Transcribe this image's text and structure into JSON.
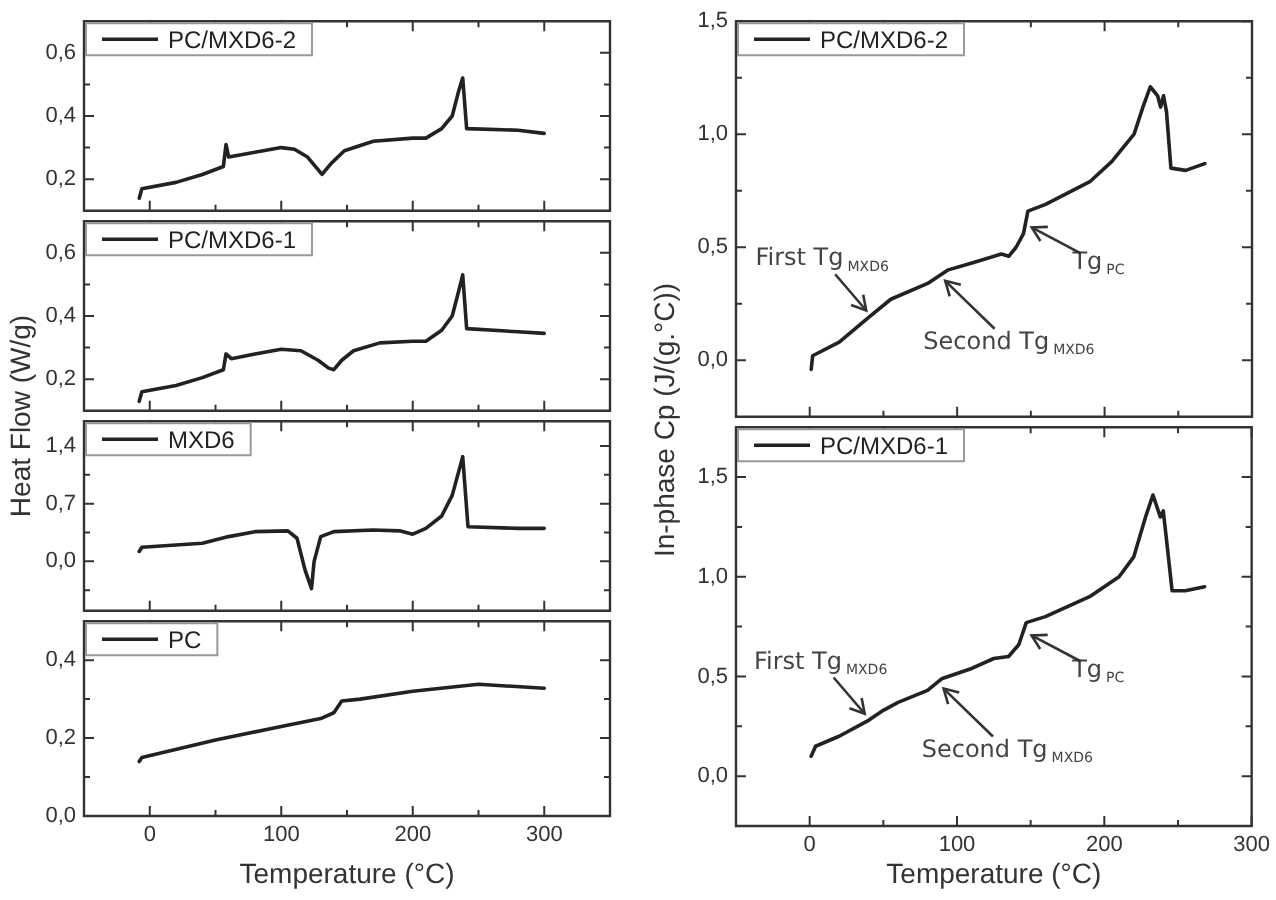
{
  "chart_data": [
    {
      "type": "line",
      "series": [
        {
          "name": "PC/MXD6-2",
          "color": "#222222",
          "x": [
            -8,
            -6,
            20,
            40,
            56,
            58,
            60,
            80,
            100,
            110,
            120,
            128,
            131,
            138,
            148,
            170,
            200,
            210,
            222,
            230,
            235,
            238,
            241,
            280,
            300
          ],
          "values": [
            0.14,
            0.17,
            0.19,
            0.215,
            0.24,
            0.31,
            0.27,
            0.285,
            0.3,
            0.295,
            0.27,
            0.23,
            0.215,
            0.25,
            0.29,
            0.32,
            0.33,
            0.33,
            0.36,
            0.4,
            0.48,
            0.52,
            0.36,
            0.355,
            0.345
          ]
        }
      ],
      "xlim": [
        -50,
        350
      ],
      "xticks": [
        0,
        {
          "value": 50,
          "label": null
        },
        100,
        {
          "value": 150,
          "label": null
        },
        200,
        {
          "value": 250,
          "label": null
        },
        300
      ],
      "ylim": [
        0.1,
        0.7
      ],
      "yticks": [
        {
          "value": 0.2,
          "label": "0,2"
        },
        {
          "value": 0.3,
          "label": null
        },
        {
          "value": 0.4,
          "label": "0,4"
        },
        {
          "value": 0.5,
          "label": null
        },
        {
          "value": 0.6,
          "label": "0,6"
        }
      ],
      "tick_labels": "y",
      "legend": "top left",
      "marker": "none"
    },
    {
      "type": "line",
      "ylabel": "Heat Flow (W/g)",
      "series": [
        {
          "name": "PC/MXD6-1",
          "color": "#222222",
          "x": [
            -8,
            -6,
            20,
            40,
            56,
            58,
            62,
            80,
            100,
            115,
            128,
            136,
            140,
            146,
            155,
            175,
            200,
            210,
            222,
            230,
            235,
            238,
            241,
            280,
            300
          ],
          "values": [
            0.13,
            0.16,
            0.18,
            0.205,
            0.23,
            0.28,
            0.265,
            0.28,
            0.295,
            0.29,
            0.26,
            0.235,
            0.23,
            0.26,
            0.29,
            0.315,
            0.32,
            0.32,
            0.355,
            0.4,
            0.48,
            0.53,
            0.36,
            0.35,
            0.345
          ]
        }
      ],
      "xlim": [
        -50,
        350
      ],
      "xticks": [
        0,
        {
          "value": 50,
          "label": null
        },
        100,
        {
          "value": 150,
          "label": null
        },
        200,
        {
          "value": 250,
          "label": null
        },
        300
      ],
      "ylim": [
        0.1,
        0.7
      ],
      "yticks": [
        {
          "value": 0.2,
          "label": "0,2"
        },
        {
          "value": 0.3,
          "label": null
        },
        {
          "value": 0.4,
          "label": "0,4"
        },
        {
          "value": 0.5,
          "label": null
        },
        {
          "value": 0.6,
          "label": "0,6"
        }
      ],
      "tick_labels": "y",
      "legend": "top left",
      "marker": "none"
    },
    {
      "type": "line",
      "series": [
        {
          "name": "MXD6",
          "color": "#222222",
          "x": [
            -8,
            -6,
            40,
            60,
            80,
            105,
            112,
            118,
            123,
            125,
            130,
            140,
            170,
            190,
            200,
            210,
            222,
            230,
            236,
            238,
            242,
            280,
            300
          ],
          "values": [
            0.12,
            0.17,
            0.22,
            0.3,
            0.36,
            0.37,
            0.28,
            -0.1,
            -0.33,
            0.0,
            0.3,
            0.36,
            0.38,
            0.37,
            0.33,
            0.4,
            0.55,
            0.8,
            1.15,
            1.27,
            0.42,
            0.4,
            0.4
          ]
        }
      ],
      "xlim": [
        -50,
        350
      ],
      "xticks": [
        0,
        {
          "value": 50,
          "label": null
        },
        100,
        {
          "value": 150,
          "label": null
        },
        200,
        {
          "value": 250,
          "label": null
        },
        300
      ],
      "ylim": [
        -0.6,
        1.7
      ],
      "yticks": [
        {
          "value": -0.35,
          "label": null
        },
        {
          "value": 0,
          "label": "0,0"
        },
        {
          "value": 0.35,
          "label": null
        },
        {
          "value": 0.7,
          "label": "0,7"
        },
        {
          "value": 1.05,
          "label": null
        },
        {
          "value": 1.4,
          "label": "1,4"
        }
      ],
      "tick_labels": "y",
      "legend": "top left",
      "marker": "none"
    },
    {
      "type": "line",
      "xlabel": "Temperature (°C)",
      "series": [
        {
          "name": "PC",
          "color": "#222222",
          "x": [
            -8,
            -6,
            50,
            100,
            130,
            140,
            146,
            160,
            200,
            250,
            300
          ],
          "values": [
            0.14,
            0.15,
            0.195,
            0.23,
            0.25,
            0.265,
            0.295,
            0.3,
            0.32,
            0.338,
            0.328
          ]
        }
      ],
      "xlim": [
        -50,
        350
      ],
      "xticks": [
        0,
        {
          "value": 50,
          "label": null
        },
        100,
        {
          "value": 150,
          "label": null
        },
        200,
        {
          "value": 250,
          "label": null
        },
        300
      ],
      "ylim": [
        0,
        0.5
      ],
      "yticks": [
        {
          "value": 0,
          "label": "0,0"
        },
        {
          "value": 0.1,
          "label": null
        },
        {
          "value": 0.2,
          "label": "0,2"
        },
        {
          "value": 0.3,
          "label": null
        },
        {
          "value": 0.4,
          "label": "0,4"
        }
      ],
      "legend": "top left",
      "marker": "none"
    },
    {
      "type": "line",
      "ylabel": "In-phase Cp (J/(g.°C))",
      "series": [
        {
          "name": "PC/MXD6-2",
          "color": "#222222",
          "x": [
            1,
            2,
            20,
            40,
            55,
            80,
            94,
            110,
            130,
            135,
            140,
            145,
            148,
            160,
            190,
            205,
            220,
            226,
            231,
            236,
            238,
            240,
            242,
            245,
            255,
            268
          ],
          "values": [
            -0.04,
            0.02,
            0.08,
            0.19,
            0.27,
            0.34,
            0.4,
            0.43,
            0.47,
            0.46,
            0.5,
            0.56,
            0.66,
            0.69,
            0.79,
            0.88,
            1.0,
            1.12,
            1.21,
            1.17,
            1.12,
            1.17,
            1.1,
            0.85,
            0.84,
            0.87
          ]
        }
      ],
      "xlim": [
        -50,
        300
      ],
      "xticks": [
        0,
        {
          "value": 50,
          "label": null
        },
        100,
        {
          "value": 150,
          "label": null
        },
        200,
        {
          "value": 250,
          "label": null
        }
      ],
      "ylim": [
        -0.25,
        1.5
      ],
      "yticks": [
        {
          "value": 0,
          "label": "0,0"
        },
        {
          "value": 0.25,
          "label": null
        },
        {
          "value": 0.5,
          "label": "0,5"
        },
        {
          "value": 0.75,
          "label": null
        },
        {
          "value": 1,
          "label": "1,0"
        },
        {
          "value": 1.25,
          "label": null
        },
        {
          "value": 1.5,
          "label": "1,5"
        }
      ],
      "tick_labels": "y",
      "legend": "top left",
      "marker": "none",
      "annotations": [
        {
          "text": "First Tg$_{MXD6}$",
          "x": 41,
          "y": 0.2
        },
        {
          "text": "Second Tg$_{MXD6}$",
          "x": 89,
          "y": 0.37
        },
        {
          "text": "Tg$_{PC}$",
          "x": 147,
          "y": 0.6
        }
      ]
    },
    {
      "type": "line",
      "xlabel": "Temperature (°C)",
      "series": [
        {
          "name": "PC/MXD6-1",
          "color": "#222222",
          "x": [
            1,
            4,
            20,
            40,
            50,
            60,
            80,
            90,
            110,
            125,
            135,
            142,
            147,
            160,
            190,
            210,
            220,
            228,
            233,
            238,
            240,
            242,
            246,
            255,
            268
          ],
          "values": [
            0.1,
            0.15,
            0.2,
            0.28,
            0.33,
            0.37,
            0.43,
            0.49,
            0.54,
            0.59,
            0.6,
            0.66,
            0.77,
            0.8,
            0.9,
            1.0,
            1.1,
            1.3,
            1.41,
            1.3,
            1.33,
            1.2,
            0.93,
            0.93,
            0.95
          ]
        }
      ],
      "xlim": [
        -50,
        300
      ],
      "xticks": [
        0,
        {
          "value": 50,
          "label": null
        },
        100,
        {
          "value": 150,
          "label": null
        },
        200,
        {
          "value": 250,
          "label": null
        },
        300
      ],
      "ylim": [
        -0.25,
        1.75
      ],
      "yticks": [
        {
          "value": 0,
          "label": "0,0"
        },
        {
          "value": 0.25,
          "label": null
        },
        {
          "value": 0.5,
          "label": "0,5"
        },
        {
          "value": 0.75,
          "label": null
        },
        {
          "value": 1,
          "label": "1,0"
        },
        {
          "value": 1.25,
          "label": null
        },
        {
          "value": 1.5,
          "label": "1,5"
        }
      ],
      "legend": "top left",
      "marker": "none",
      "annotations": [
        {
          "text": "First Tg$_{MXD6}$",
          "x": 40,
          "y": 0.29
        },
        {
          "text": "Second Tg$_{MXD6}$",
          "x": 88,
          "y": 0.46
        },
        {
          "text": "Tg$_{PC}$",
          "x": 147,
          "y": 0.72
        }
      ]
    }
  ]
}
